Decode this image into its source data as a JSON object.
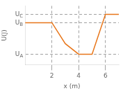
{
  "chart_data": {
    "type": "line",
    "x": [
      0,
      2,
      3,
      4,
      5,
      6,
      7
    ],
    "values": [
      4,
      4,
      2,
      1,
      1,
      4.8,
      4.8
    ],
    "color": "#e8761a",
    "xlabel": "x (m)",
    "ylabel": "U(J)",
    "xlim": [
      0,
      7
    ],
    "ylim": [
      0,
      5.6
    ],
    "xticks": [
      2,
      4,
      6
    ],
    "yticks": [
      {
        "value": 4.8,
        "label": "U_C"
      },
      {
        "value": 4.0,
        "label": "U_B"
      },
      {
        "value": 1.0,
        "label": "U_A"
      }
    ],
    "grid": true
  }
}
